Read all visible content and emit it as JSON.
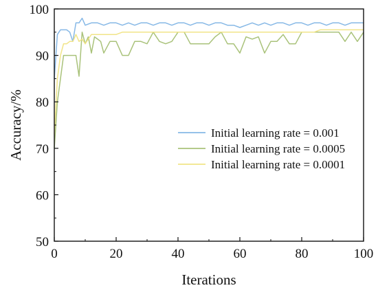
{
  "chart_data": {
    "type": "line",
    "xlabel": "Iterations",
    "ylabel": "Accuracy/%",
    "xlim": [
      0,
      100
    ],
    "ylim": [
      50,
      100
    ],
    "xticks": [
      0,
      20,
      40,
      60,
      80,
      100
    ],
    "yticks": [
      50,
      60,
      70,
      80,
      90,
      100
    ],
    "legend_position": "right",
    "series": [
      {
        "name": "Initial learning rate = 0.001",
        "color": "#86b8e6",
        "x": [
          0,
          1,
          2,
          3,
          4,
          5,
          6,
          7,
          8,
          9,
          10,
          12,
          14,
          16,
          18,
          20,
          22,
          24,
          26,
          28,
          30,
          32,
          34,
          36,
          38,
          40,
          42,
          44,
          46,
          48,
          50,
          52,
          54,
          56,
          58,
          60,
          62,
          64,
          66,
          68,
          70,
          72,
          74,
          76,
          78,
          80,
          82,
          84,
          86,
          88,
          90,
          92,
          94,
          96,
          98,
          100
        ],
        "y": [
          85,
          94.5,
          95.5,
          95.5,
          95.5,
          95,
          93,
          97,
          97,
          98,
          96.5,
          97,
          97,
          96.5,
          97,
          97,
          96.5,
          97,
          96.5,
          97,
          97,
          96.5,
          97,
          97,
          96.5,
          97,
          97,
          96.5,
          97,
          97,
          96.5,
          97,
          97,
          96.5,
          96.5,
          96,
          96.5,
          97,
          96.5,
          97,
          96.5,
          97,
          97,
          96.5,
          97,
          97,
          96.5,
          97,
          97,
          96.5,
          97,
          97,
          96.5,
          97,
          97,
          97
        ]
      },
      {
        "name": "Initial learning rate = 0.0005",
        "color": "#a9c27a",
        "x": [
          0,
          1,
          2,
          3,
          4,
          5,
          6,
          7,
          8,
          9,
          10,
          11,
          12,
          13,
          14,
          15,
          16,
          18,
          20,
          22,
          24,
          26,
          28,
          30,
          32,
          34,
          36,
          38,
          40,
          42,
          44,
          46,
          48,
          50,
          52,
          54,
          56,
          58,
          60,
          62,
          64,
          66,
          68,
          70,
          72,
          74,
          76,
          78,
          80,
          82,
          84,
          86,
          88,
          90,
          92,
          94,
          96,
          98,
          100
        ],
        "y": [
          70,
          80,
          85,
          90,
          90,
          90,
          90,
          90,
          85.5,
          95,
          92.5,
          94,
          90.5,
          94,
          93.5,
          93,
          90.5,
          93,
          93,
          90,
          90,
          93,
          93,
          92.5,
          95,
          93,
          92.5,
          93,
          95,
          95,
          92.5,
          92.5,
          92.5,
          92.5,
          94,
          95,
          92.5,
          92.5,
          90.5,
          94,
          93.5,
          94,
          90.5,
          93,
          93,
          94.5,
          92.5,
          92.5,
          95,
          95,
          95,
          95,
          95,
          95,
          95,
          93,
          95,
          93,
          95
        ]
      },
      {
        "name": "Initial learning rate = 0.0001",
        "color": "#f1e487",
        "x": [
          0,
          1,
          2,
          3,
          4,
          5,
          6,
          7,
          8,
          9,
          10,
          12,
          14,
          16,
          18,
          20,
          22,
          24,
          26,
          28,
          30,
          32,
          34,
          36,
          38,
          40,
          42,
          44,
          46,
          48,
          50,
          52,
          54,
          56,
          58,
          60,
          62,
          64,
          66,
          68,
          70,
          72,
          74,
          76,
          78,
          80,
          82,
          84,
          86,
          88,
          90,
          92,
          94,
          96,
          98,
          100
        ],
        "y": [
          73,
          85,
          90,
          92.5,
          92.5,
          93,
          93,
          94.5,
          93,
          93.5,
          92.5,
          94.5,
          94.5,
          94.5,
          94.5,
          94.5,
          95,
          95,
          95,
          95,
          95,
          95,
          95,
          95,
          95,
          95,
          95,
          95,
          95,
          95,
          95,
          95,
          95,
          95,
          95,
          95,
          95,
          95,
          95,
          95,
          95,
          95,
          95,
          95,
          95,
          95,
          95,
          95,
          95.5,
          95.5,
          95.5,
          95.5,
          95.5,
          95.5,
          95.5,
          95.5
        ]
      }
    ]
  }
}
